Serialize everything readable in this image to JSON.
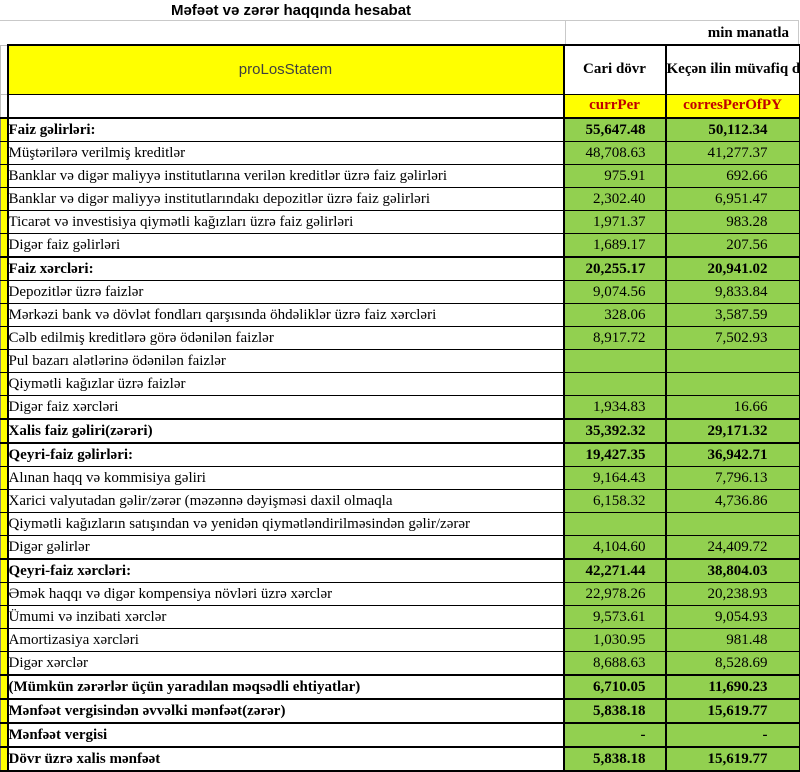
{
  "title": "Məfəət və zərər haqqında hesabat",
  "unit_note": "min manatla",
  "header": {
    "statement_code": "proLosStatem",
    "current_period_label": "Cari dövr",
    "prior_period_label": "Keçən ilin müvafiq dövrü",
    "current_period_code": "currPer",
    "prior_period_code": "corresPerOfPY"
  },
  "rows": [
    {
      "label": "Faiz gəlirləri:",
      "current": "55,647.48",
      "prior": "50,112.34",
      "bold": true
    },
    {
      "label": "Müştərilərə verilmiş kreditlər",
      "current": "48,708.63",
      "prior": "41,277.37",
      "bold": false
    },
    {
      "label": "Banklar və digər maliyyə institutlarına verilən kreditlər üzrə faiz gəlirləri",
      "current": "975.91",
      "prior": "692.66",
      "bold": false
    },
    {
      "label": "Banklar və digər maliyyə institutlarındakı depozitlər üzrə faiz gəlirləri",
      "current": "2,302.40",
      "prior": "6,951.47",
      "bold": false
    },
    {
      "label": "Ticarət və investisiya qiymətli kağızları üzrə faiz gəlirləri",
      "current": "1,971.37",
      "prior": "983.28",
      "bold": false
    },
    {
      "label": "Digər faiz gəlirləri",
      "current": "1,689.17",
      "prior": "207.56",
      "bold": false
    },
    {
      "label": "Faiz xərcləri:",
      "current": "20,255.17",
      "prior": "20,941.02",
      "bold": true
    },
    {
      "label": "Depozitlər üzrə faizlər",
      "current": "9,074.56",
      "prior": "9,833.84",
      "bold": false
    },
    {
      "label": "Mərkəzi bank və dövlət fondları qarşısında öhdəliklər üzrə faiz xərcləri",
      "current": "328.06",
      "prior": "3,587.59",
      "bold": false
    },
    {
      "label": "Cəlb edilmiş kreditlərə görə ödənilən faizlər",
      "current": "8,917.72",
      "prior": "7,502.93",
      "bold": false
    },
    {
      "label": "Pul bazarı alətlərinə ödənilən faizlər",
      "current": "",
      "prior": "",
      "bold": false
    },
    {
      "label": "Qiymətli kağızlar üzrə faizlər",
      "current": "",
      "prior": "",
      "bold": false
    },
    {
      "label": "Digər faiz xərcləri",
      "current": "1,934.83",
      "prior": "16.66",
      "bold": false
    },
    {
      "label": "Xalis faiz gəliri(zərəri)",
      "current": "35,392.32",
      "prior": "29,171.32",
      "bold": true
    },
    {
      "label": "Qeyri-faiz gəlirləri:",
      "current": "19,427.35",
      "prior": "36,942.71",
      "bold": true
    },
    {
      "label": "Alınan haqq və kommisiya gəliri",
      "current": "9,164.43",
      "prior": "7,796.13",
      "bold": false
    },
    {
      "label": "Xarici valyutadan gəlir/zərər (məzənnə dəyişməsi daxil olmaqla",
      "current": "6,158.32",
      "prior": "4,736.86",
      "bold": false
    },
    {
      "label": "Qiymətli kağızların satışından və yenidən qiymətləndirilməsindən gəlir/zərər",
      "current": "",
      "prior": "",
      "bold": false
    },
    {
      "label": "Digər gəlirlər",
      "current": "4,104.60",
      "prior": "24,409.72",
      "bold": false
    },
    {
      "label": "Qeyri-faiz xərcləri:",
      "current": "42,271.44",
      "prior": "38,804.03",
      "bold": true
    },
    {
      "label": "Əmək haqqı və digər kompensiya növləri üzrə xərclər",
      "current": "22,978.26",
      "prior": "20,238.93",
      "bold": false
    },
    {
      "label": "Ümumi və inzibati xərclər",
      "current": "9,573.61",
      "prior": "9,054.93",
      "bold": false
    },
    {
      "label": "Amortizasiya xərcləri",
      "current": "1,030.95",
      "prior": "981.48",
      "bold": false
    },
    {
      "label": "Digər xərclər",
      "current": "8,688.63",
      "prior": "8,528.69",
      "bold": false
    },
    {
      "label": "(Mümkün zərərlər üçün yaradılan məqsədli ehtiyatlar)",
      "current": "6,710.05",
      "prior": "11,690.23",
      "bold": true
    },
    {
      "label": "Mənfəət vergisindən əvvəlki mənfəət(zərər)",
      "current": "5,838.18",
      "prior": "15,619.77",
      "bold": true
    },
    {
      "label": "Mənfəət vergisi",
      "current": "-",
      "prior": "-",
      "bold": true
    },
    {
      "label": "Dövr üzrə xalis mənfəət",
      "current": "5,838.18",
      "prior": "15,619.77",
      "bold": true
    }
  ],
  "colors": {
    "header_fill": "#FFFF00",
    "value_fill": "#92D050",
    "period_code_text": "#C00000",
    "statement_code_text": "#404040"
  }
}
